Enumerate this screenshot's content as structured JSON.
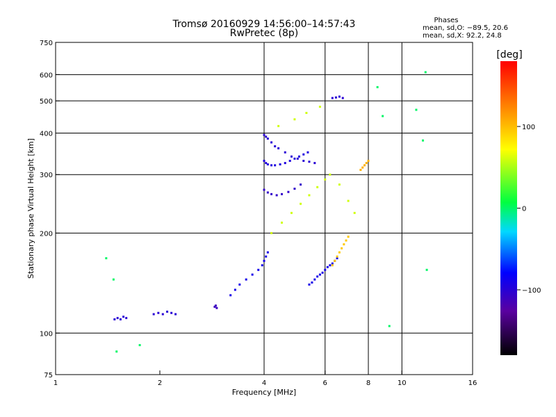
{
  "chart_data": {
    "type": "scatter",
    "title": "Tromsø 20160929 14:56:00–14:57:43",
    "subtitle": "RwPretec (8p)",
    "xlabel": "Frequency [MHz]",
    "ylabel": "Stationary phase Virtual Height [km]",
    "xscale": "log2",
    "yscale": "log",
    "xlim": [
      1,
      16
    ],
    "ylim": [
      75,
      750
    ],
    "x_ticks": [
      1,
      2,
      4,
      6,
      8,
      10,
      16
    ],
    "x_gridlines": [
      4,
      6,
      8,
      10
    ],
    "y_ticks": [
      75,
      100,
      200,
      300,
      400,
      500,
      600,
      750
    ],
    "y_gridlines": [
      100,
      200,
      300,
      400,
      500,
      600
    ],
    "phases_box": {
      "heading": "Phases",
      "line1": "mean, sd,O: −89.5, 20.6",
      "line2": "mean, sd,X:  92.2, 24.8"
    },
    "colorbar": {
      "label": "[deg]",
      "range": [
        -180,
        180
      ],
      "ticks": [
        100,
        0,
        -100
      ],
      "tick_labels": [
        "100",
        "0",
        "−100"
      ]
    },
    "point_groups": [
      {
        "name": "sporadic-low-1",
        "x": [
          1.48,
          1.51,
          1.54,
          1.57,
          1.6
        ],
        "y": [
          110,
          111,
          110,
          112,
          111
        ],
        "phase": -100
      },
      {
        "name": "sporadic-low-2",
        "x": [
          1.92,
          1.98,
          2.04,
          2.1,
          2.16,
          2.22
        ],
        "y": [
          114,
          115,
          114,
          116,
          115,
          114
        ],
        "phase": -100
      },
      {
        "name": "sporadic-low-3",
        "x": [
          2.88,
          2.9,
          2.92
        ],
        "y": [
          120,
          121,
          119
        ],
        "phase": -110
      },
      {
        "name": "E-trace",
        "x": [
          3.2,
          3.3,
          3.4,
          3.55,
          3.7,
          3.85,
          3.95,
          4.0,
          4.05,
          4.1
        ],
        "y": [
          130,
          135,
          140,
          145,
          150,
          155,
          160,
          165,
          170,
          175
        ],
        "phase": -90
      },
      {
        "name": "F1-trace-O",
        "x": [
          4.0,
          4.05,
          4.1,
          4.2,
          4.3,
          4.4,
          4.6,
          4.8,
          5.0,
          5.2,
          5.4,
          5.6
        ],
        "y": [
          395,
          390,
          385,
          375,
          365,
          360,
          350,
          340,
          335,
          330,
          328,
          325
        ],
        "phase": -100
      },
      {
        "name": "F1-trace-low",
        "x": [
          4.0,
          4.1,
          4.2,
          4.35,
          4.5,
          4.7,
          4.9,
          5.1
        ],
        "y": [
          270,
          265,
          262,
          260,
          262,
          266,
          272,
          280
        ],
        "phase": -105
      },
      {
        "name": "F-cusp",
        "x": [
          4.0,
          4.05,
          4.1,
          4.2,
          4.3,
          4.45,
          4.6,
          4.75,
          4.9,
          5.05,
          5.2,
          5.35
        ],
        "y": [
          330,
          325,
          322,
          320,
          320,
          322,
          325,
          330,
          335,
          340,
          345,
          350
        ],
        "phase": -95
      },
      {
        "name": "F2-O-branch",
        "x": [
          5.4,
          5.5,
          5.6,
          5.7,
          5.8,
          5.9,
          6.0,
          6.1,
          6.2,
          6.3,
          6.4,
          6.5
        ],
        "y": [
          140,
          142,
          145,
          148,
          150,
          152,
          155,
          158,
          160,
          162,
          165,
          168
        ],
        "phase": -90
      },
      {
        "name": "F2-X-branch",
        "x": [
          6.3,
          6.4,
          6.5,
          6.6,
          6.7,
          6.8,
          6.9,
          7.0
        ],
        "y": [
          160,
          165,
          170,
          175,
          180,
          185,
          190,
          195
        ],
        "phase": 95
      },
      {
        "name": "F2-high-O",
        "x": [
          6.3,
          6.45,
          6.6,
          6.75
        ],
        "y": [
          510,
          512,
          515,
          510
        ],
        "phase": -100
      },
      {
        "name": "oblique-X",
        "x": [
          7.6,
          7.7,
          7.8,
          7.9,
          8.0
        ],
        "y": [
          310,
          315,
          320,
          325,
          330
        ],
        "phase": 105
      },
      {
        "name": "scattered-spread",
        "x": [
          4.2,
          4.5,
          4.8,
          5.1,
          5.4,
          5.7,
          6.0,
          4.4,
          4.9,
          5.3,
          5.8,
          6.2,
          6.6,
          7.0,
          7.3
        ],
        "y": [
          200,
          215,
          230,
          245,
          260,
          275,
          290,
          420,
          440,
          460,
          480,
          300,
          280,
          250,
          230
        ],
        "phase": 60
      },
      {
        "name": "isolated-points",
        "x": [
          1.4,
          1.47,
          1.5,
          1.75,
          8.5,
          8.8,
          9.2,
          11.0,
          11.7,
          11.8,
          11.5
        ],
        "y": [
          168,
          145,
          88,
          92,
          550,
          450,
          105,
          470,
          610,
          155,
          380
        ],
        "phase": 0
      }
    ]
  }
}
